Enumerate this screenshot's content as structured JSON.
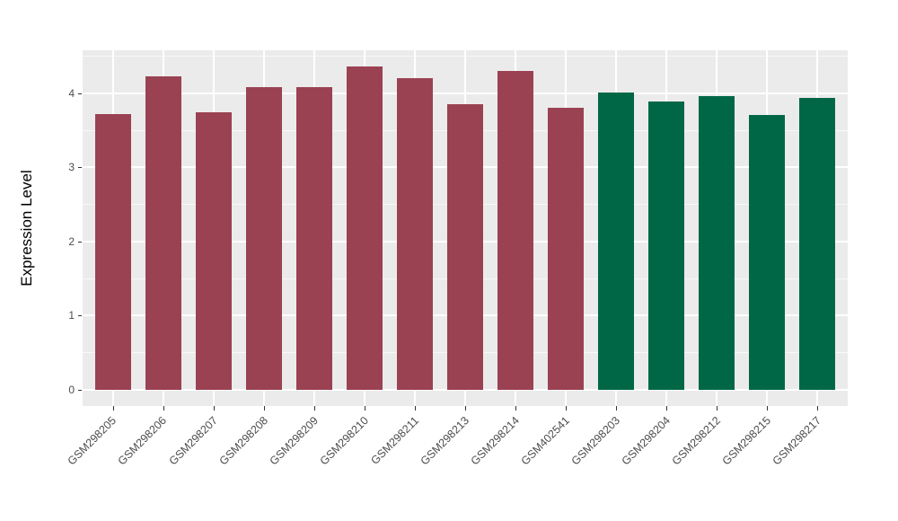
{
  "chart_data": {
    "type": "bar",
    "title": "",
    "xlabel": "",
    "ylabel": "Expression Level",
    "categories": [
      "GSM298205",
      "GSM298206",
      "GSM298207",
      "GSM298208",
      "GSM298209",
      "GSM298210",
      "GSM298211",
      "GSM298213",
      "GSM298214",
      "GSM402541",
      "GSM298203",
      "GSM298204",
      "GSM298212",
      "GSM298215",
      "GSM298217"
    ],
    "values": [
      3.72,
      4.23,
      3.74,
      4.08,
      4.08,
      4.36,
      4.21,
      3.85,
      4.3,
      3.8,
      4.01,
      3.89,
      3.96,
      3.71,
      3.94
    ],
    "bar_groups": [
      "group1",
      "group1",
      "group1",
      "group1",
      "group1",
      "group1",
      "group1",
      "group1",
      "group1",
      "group1",
      "group2",
      "group2",
      "group2",
      "group2",
      "group2"
    ],
    "group_colors": {
      "group1": "#9A4252",
      "group2": "#006746"
    },
    "yticks": [
      0,
      1,
      2,
      3,
      4
    ],
    "ytick_labels": [
      "0",
      "1",
      "2",
      "3",
      "4"
    ],
    "ylim": [
      -0.22,
      4.58
    ],
    "x_label_angle_deg": -45,
    "grid": true,
    "legend": false,
    "panel_background": "#EBEBEB",
    "gridline_color": "#FFFFFF",
    "tick_color": "#333333"
  }
}
